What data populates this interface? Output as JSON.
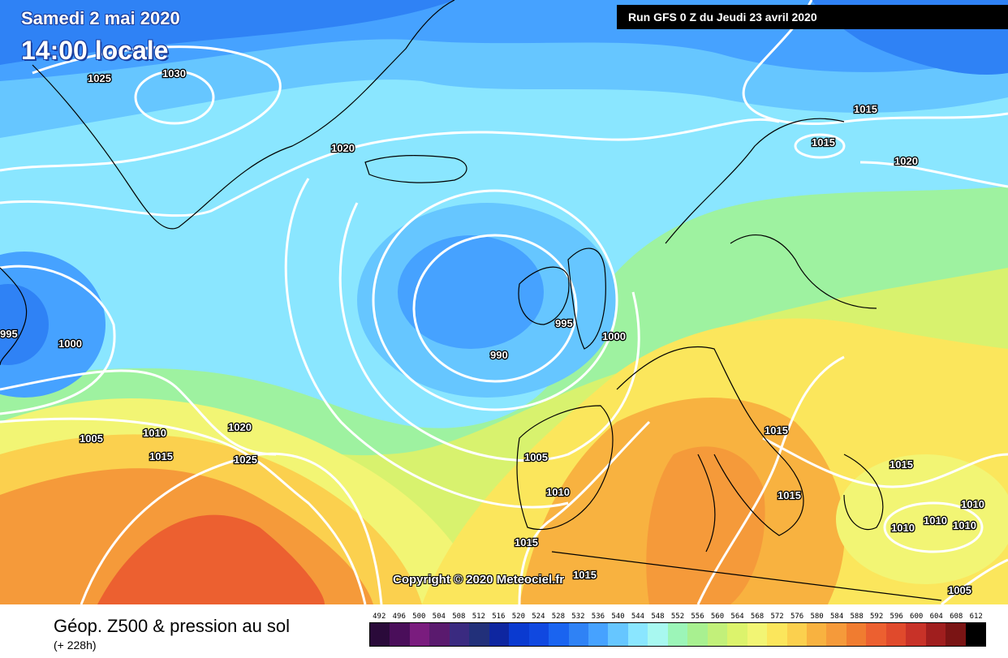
{
  "header": {
    "date": "Samedi 2 mai 2020",
    "time": "14:00 locale",
    "run": "Run GFS 0 Z du Jeudi 23 avril 2020"
  },
  "copyright": "Copyright © 2020 Meteociel.fr",
  "isobar_labels": [
    "1025",
    "1030",
    "1020",
    "1015",
    "1015",
    "1020",
    "995",
    "1000",
    "995",
    "990",
    "1000",
    "1005",
    "1010",
    "1015",
    "1020",
    "1025",
    "1015",
    "1005",
    "1010",
    "1015",
    "1015",
    "1015",
    "1010",
    "1010",
    "1010",
    "1010",
    "1005",
    "1015"
  ],
  "footer": {
    "title": "Géop. Z500 & pression au sol",
    "subtitle": "(+ 228h)"
  },
  "legend": {
    "ticks": [
      "492",
      "496",
      "500",
      "504",
      "508",
      "512",
      "516",
      "520",
      "524",
      "528",
      "532",
      "536",
      "540",
      "544",
      "548",
      "552",
      "556",
      "560",
      "564",
      "568",
      "572",
      "576",
      "580",
      "584",
      "588",
      "592",
      "596",
      "600",
      "604",
      "608",
      "612"
    ],
    "colors": [
      "#2a0a3a",
      "#4a0e5a",
      "#7a1c7e",
      "#5a1a6e",
      "#3a2a80",
      "#22307a",
      "#0e26a0",
      "#0a3ad0",
      "#1048e0",
      "#1a64f0",
      "#2f82f5",
      "#46a2ff",
      "#66c6ff",
      "#8ae6ff",
      "#a8f8f0",
      "#9cf5b8",
      "#a8f090",
      "#c2f07a",
      "#dcf36c",
      "#f2f574",
      "#fbe65c",
      "#fbd04e",
      "#f8b240",
      "#f59a3a",
      "#f07c30",
      "#ec6030",
      "#e04a2c",
      "#c83228",
      "#a01e1e",
      "#7a1414",
      "#000000"
    ]
  }
}
